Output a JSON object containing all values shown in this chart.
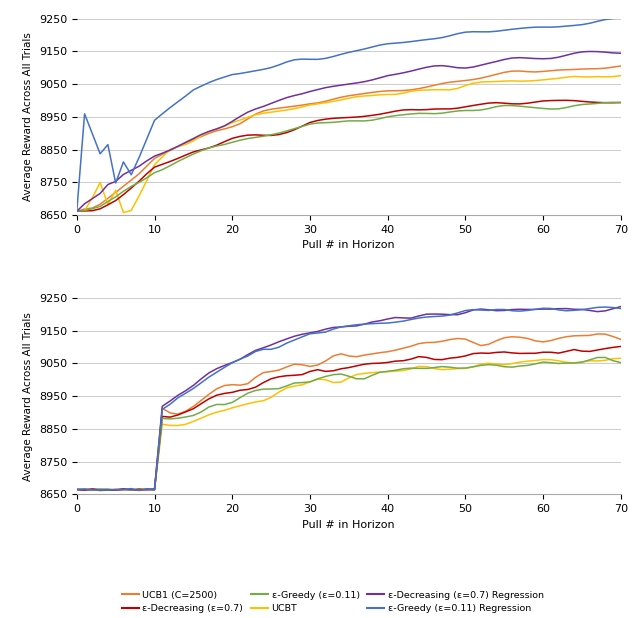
{
  "ylabel": "Average Reward Across All Trials",
  "xlabel": "Pull # in Horizon",
  "ylim": [
    8650,
    9250
  ],
  "xlim": [
    0,
    70
  ],
  "yticks": [
    8650,
    8750,
    8850,
    8950,
    9050,
    9150,
    9250
  ],
  "xticks": [
    0,
    10,
    20,
    30,
    40,
    50,
    60,
    70
  ],
  "colors": {
    "ucb1": "#ED7D31",
    "ucbt": "#FFC000",
    "eps_dec": "#C00000",
    "eps_greedy": "#70AD47",
    "eps_dec_reg": "#7030A0",
    "eps_greedy_reg": "#4472C4"
  },
  "legend_row1": [
    "UCB1 (C=2500)",
    "ε-Decreasing (ε=0.7)",
    "ε-Greedy (ε=0.11)"
  ],
  "legend_row2": [
    "UCBT",
    "ε-Decreasing (ε=0.7) Regression",
    "ε-Greedy (ε=0.11) Regression"
  ]
}
